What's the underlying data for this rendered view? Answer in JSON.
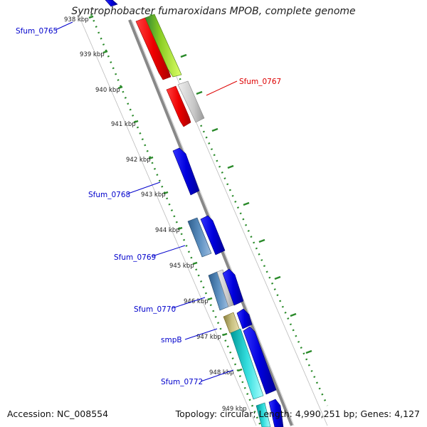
{
  "title": "Syntrophobacter fumaroxidans MPOB, complete genome",
  "accession_text": "Accession: NC_008554",
  "topology_text": "Topology: circular; Length: 4,990,251 bp; Genes: 4,127",
  "ticks": [
    {
      "label": "938 kbp"
    },
    {
      "label": "939 kbp"
    },
    {
      "label": "940 kbp"
    },
    {
      "label": "941 kbp"
    },
    {
      "label": "942 kbp"
    },
    {
      "label": "943 kbp"
    },
    {
      "label": "944 kbp"
    },
    {
      "label": "945 kbp"
    },
    {
      "label": "946 kbp"
    },
    {
      "label": "947 kbp"
    },
    {
      "label": "948 kbp"
    },
    {
      "label": "949 kbp"
    }
  ],
  "gene_labels": [
    {
      "text": "Sfum_0765",
      "color": "#0000cc"
    },
    {
      "text": "Sfum_0767",
      "color": "#dd0000"
    },
    {
      "text": "Sfum_0768",
      "color": "#0000cc"
    },
    {
      "text": "Sfum_0769",
      "color": "#0000cc"
    },
    {
      "text": "Sfum_0770",
      "color": "#0000cc"
    },
    {
      "text": "smpB",
      "color": "#0000cc"
    },
    {
      "text": "Sfum_0772",
      "color": "#0000cc"
    }
  ],
  "colors": {
    "backbone": "#888888",
    "tick_green": "#2a8a2a",
    "forward_blue": "#0000dd",
    "red": "#ee0000",
    "green_yellow": "#88cc22",
    "gray": "#c0c0c0",
    "steel_blue": "#4a7fb0",
    "olive": "#b8b070",
    "cyan": "#22cccc"
  }
}
